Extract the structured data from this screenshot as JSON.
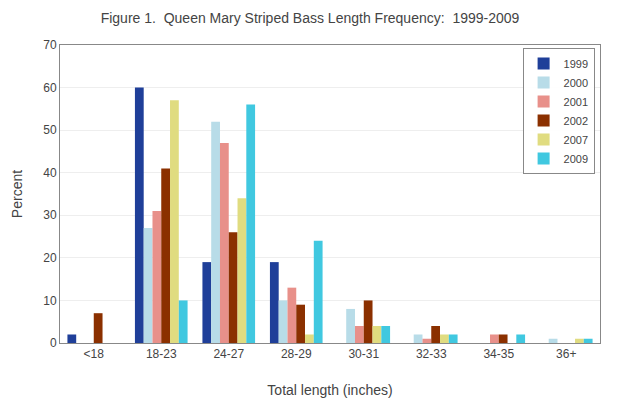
{
  "chart_data": {
    "type": "bar",
    "title": "Figure 1.  Queen Mary Striped Bass Length Frequency:  1999-2009",
    "xlabel": "Total length (inches)",
    "ylabel": "Percent",
    "categories": [
      "<18",
      "18-23",
      "24-27",
      "28-29",
      "30-31",
      "32-33",
      "34-35",
      "36+"
    ],
    "series": [
      {
        "name": "1999",
        "color": "#1F3F99",
        "values": [
          2,
          60,
          19,
          19,
          0,
          0,
          0,
          0
        ]
      },
      {
        "name": "2000",
        "color": "#B8DCE8",
        "values": [
          0,
          27,
          52,
          10,
          8,
          2,
          0,
          1
        ]
      },
      {
        "name": "2001",
        "color": "#E8908A",
        "values": [
          0,
          31,
          47,
          13,
          4,
          1,
          2,
          0
        ]
      },
      {
        "name": "2002",
        "color": "#8B3000",
        "values": [
          7,
          41,
          26,
          9,
          10,
          4,
          2,
          0
        ]
      },
      {
        "name": "2007",
        "color": "#E0DC80",
        "values": [
          0,
          57,
          34,
          2,
          4,
          2,
          0,
          1
        ]
      },
      {
        "name": "2009",
        "color": "#40C8E0",
        "values": [
          0,
          10,
          56,
          24,
          4,
          2,
          2,
          1
        ]
      }
    ],
    "ylim": [
      0,
      70
    ],
    "yticks": [
      0,
      10,
      20,
      30,
      40,
      50,
      60,
      70
    ],
    "grid": true,
    "legend": "upper right"
  }
}
